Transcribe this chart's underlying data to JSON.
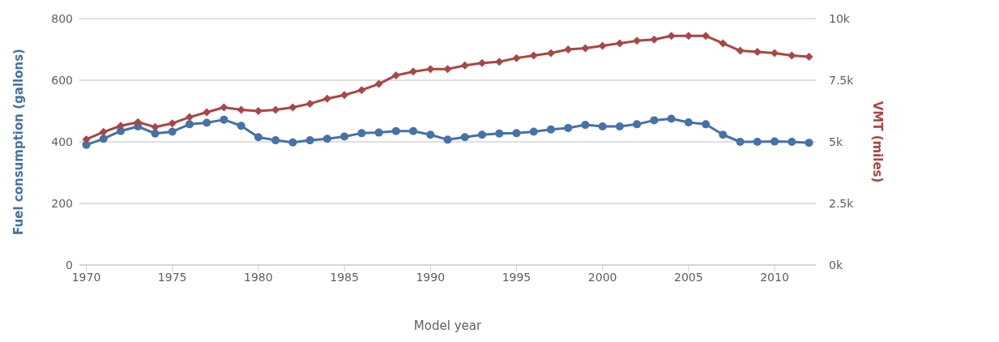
{
  "chart_data": {
    "type": "line",
    "xlabel": "Model year",
    "ylabel": "Fuel consumption (gallons)",
    "y2label": "VMT (miles)",
    "x": [
      1970,
      1971,
      1972,
      1973,
      1974,
      1975,
      1976,
      1977,
      1978,
      1979,
      1980,
      1981,
      1982,
      1983,
      1984,
      1985,
      1986,
      1987,
      1988,
      1989,
      1990,
      1991,
      1992,
      1993,
      1994,
      1995,
      1996,
      1997,
      1998,
      1999,
      2000,
      2001,
      2002,
      2003,
      2004,
      2005,
      2006,
      2007,
      2008,
      2009,
      2010,
      2011,
      2012
    ],
    "series": [
      {
        "color": "#4572a7",
        "marker": "circle",
        "values": [
          390,
          410,
          435,
          450,
          427,
          433,
          457,
          462,
          472,
          452,
          415,
          405,
          398,
          405,
          410,
          417,
          428,
          430,
          435,
          435,
          423,
          407,
          415,
          423,
          427,
          428,
          433,
          440,
          445,
          455,
          450,
          450,
          457,
          470,
          475,
          463,
          457,
          423,
          400,
          400,
          401,
          400,
          397
        ]
      },
      {
        "color": "#aa4643",
        "marker": "diamond",
        "axis": "y2",
        "values": [
          5100,
          5400,
          5650,
          5800,
          5600,
          5750,
          6000,
          6200,
          6400,
          6300,
          6250,
          6300,
          6400,
          6550,
          6750,
          6900,
          7100,
          7350,
          7700,
          7850,
          7950,
          7950,
          8100,
          8200,
          8250,
          8400,
          8500,
          8600,
          8750,
          8800,
          8900,
          9000,
          9100,
          9150,
          9300,
          9300,
          9300,
          9000,
          8700,
          8650,
          8600,
          8500,
          8450
        ]
      }
    ],
    "xlim": [
      1969.6,
      2012.4
    ],
    "xticks": [
      1970,
      1975,
      1980,
      1985,
      1990,
      1995,
      2000,
      2005,
      2010
    ],
    "ylim": [
      0,
      800
    ],
    "yticks": [
      0,
      200,
      400,
      600,
      800
    ],
    "y2lim": [
      0,
      10000
    ],
    "y2ticks": [
      {
        "value": 0,
        "label": "0k"
      },
      {
        "value": 2500,
        "label": "2.5k"
      },
      {
        "value": 5000,
        "label": "5k"
      },
      {
        "value": 7500,
        "label": "7.5k"
      },
      {
        "value": 10000,
        "label": "10k"
      }
    ],
    "grid": "y",
    "legend": false
  }
}
